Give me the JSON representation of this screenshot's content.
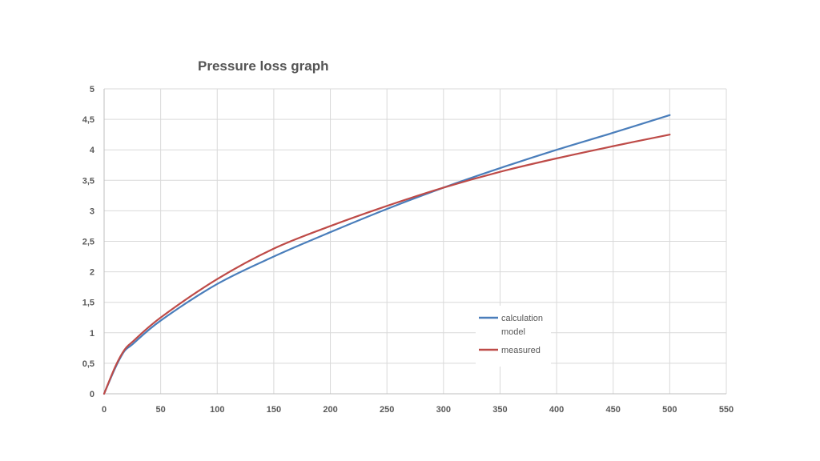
{
  "chart_data": {
    "type": "line",
    "title": "Pressure loss graph",
    "xlabel": "",
    "ylabel": "",
    "xlim": [
      0,
      550
    ],
    "ylim": [
      0,
      5
    ],
    "x_ticks": [
      0,
      50,
      100,
      150,
      200,
      250,
      300,
      350,
      400,
      450,
      500,
      550
    ],
    "x_tick_labels": [
      "0",
      "50",
      "100",
      "150",
      "200",
      "250",
      "300",
      "350",
      "400",
      "450",
      "500",
      "550"
    ],
    "y_ticks": [
      0,
      0.5,
      1,
      1.5,
      2,
      2.5,
      3,
      3.5,
      4,
      4.5,
      5
    ],
    "y_tick_labels": [
      "0",
      "0,5",
      "1",
      "1,5",
      "2",
      "2,5",
      "3",
      "3,5",
      "4",
      "4,5",
      "5"
    ],
    "grid": true,
    "legend_position": "lower-right",
    "series": [
      {
        "name": "calculation model",
        "color": "#4a7ebb",
        "x": [
          0,
          10,
          18,
          25,
          50,
          100,
          150,
          200,
          250,
          300,
          350,
          400,
          450,
          500
        ],
        "y": [
          0,
          0.43,
          0.7,
          0.81,
          1.2,
          1.8,
          2.25,
          2.65,
          3.03,
          3.38,
          3.7,
          4.0,
          4.28,
          4.57
        ]
      },
      {
        "name": "measured",
        "color": "#be4b48",
        "x": [
          0,
          10,
          18,
          25,
          50,
          100,
          150,
          200,
          250,
          300,
          350,
          400,
          450,
          500
        ],
        "y": [
          0,
          0.45,
          0.72,
          0.85,
          1.25,
          1.88,
          2.38,
          2.75,
          3.08,
          3.38,
          3.64,
          3.86,
          4.06,
          4.25
        ]
      }
    ]
  }
}
